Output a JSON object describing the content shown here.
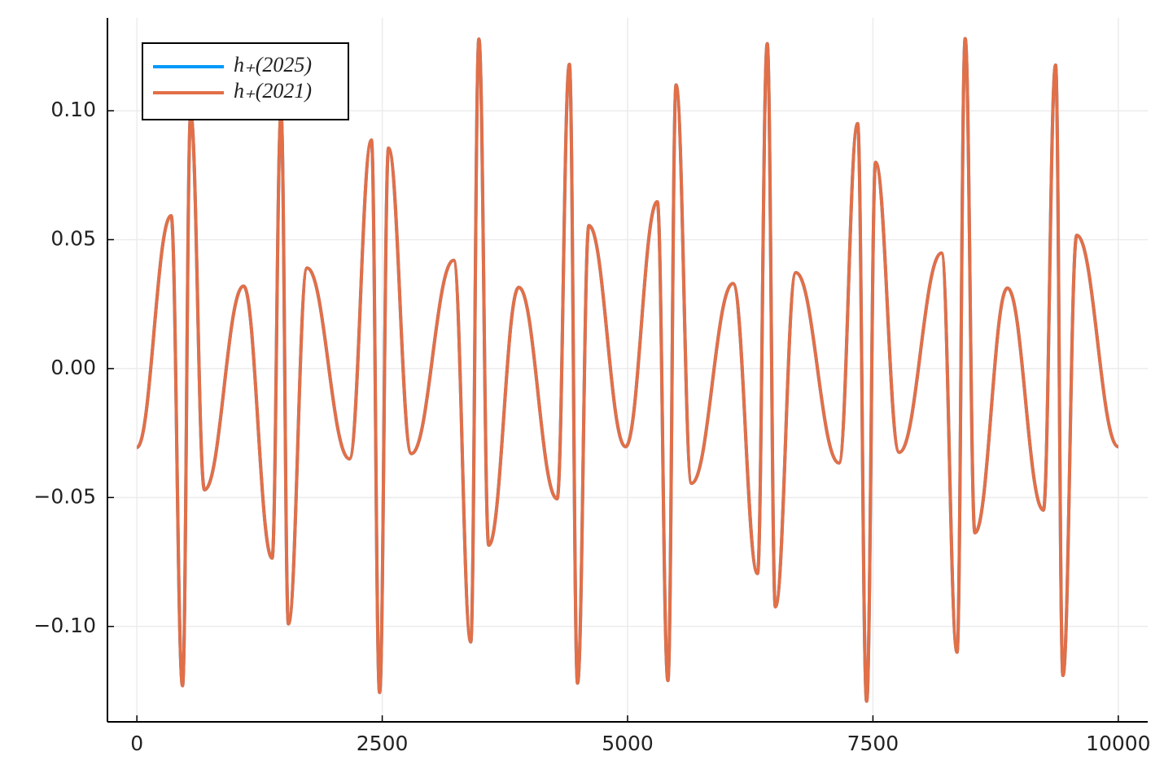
{
  "chart_data": {
    "type": "line",
    "x": [
      0,
      349,
      465,
      548,
      689,
      1087,
      1378,
      1469,
      1544,
      1734,
      2166,
      2390,
      2473,
      2564,
      2797,
      3228,
      3402,
      3485,
      3585,
      3892,
      4282,
      4407,
      4490,
      4606,
      4979,
      5303,
      5411,
      5494,
      5651,
      6075,
      6324,
      6423,
      6506,
      6714,
      7154,
      7344,
      7436,
      7527,
      7768,
      8199,
      8357,
      8440,
      8539,
      8871,
      9237,
      9361,
      9436,
      9577,
      10000
    ],
    "series": [
      {
        "name": "h₊(2025)",
        "color": "#009afa",
        "values": [
          -0.0306,
          0.0593,
          -0.123,
          0.099,
          -0.047,
          0.032,
          -0.0735,
          0.099,
          -0.099,
          0.039,
          -0.035,
          0.0886,
          -0.1256,
          0.0855,
          -0.033,
          0.042,
          -0.106,
          0.1278,
          -0.0685,
          0.0315,
          -0.0505,
          0.118,
          -0.122,
          0.0555,
          -0.0303,
          0.0647,
          -0.121,
          0.11,
          -0.0445,
          0.033,
          -0.0795,
          0.126,
          -0.0924,
          0.0372,
          -0.0366,
          0.095,
          -0.129,
          0.08,
          -0.0325,
          0.0448,
          -0.11,
          0.128,
          -0.0637,
          0.0312,
          -0.0549,
          0.1177,
          -0.119,
          0.0517,
          -0.0303
        ]
      },
      {
        "name": "h₊(2021)",
        "color": "#e36f47",
        "values": [
          -0.0306,
          0.0593,
          -0.123,
          0.099,
          -0.047,
          0.032,
          -0.0735,
          0.099,
          -0.099,
          0.039,
          -0.035,
          0.0886,
          -0.1256,
          0.0855,
          -0.033,
          0.042,
          -0.106,
          0.1278,
          -0.0685,
          0.0315,
          -0.0505,
          0.118,
          -0.122,
          0.0555,
          -0.0303,
          0.0647,
          -0.121,
          0.11,
          -0.0445,
          0.033,
          -0.0795,
          0.126,
          -0.0924,
          0.0372,
          -0.0366,
          0.095,
          -0.129,
          0.08,
          -0.0325,
          0.0448,
          -0.11,
          0.128,
          -0.0637,
          0.0312,
          -0.0549,
          0.1177,
          -0.119,
          0.0517,
          -0.0303
        ]
      }
    ],
    "xlim": [
      -300,
      10300
    ],
    "xticks": [
      0,
      2500,
      5000,
      7500,
      10000
    ],
    "ylim": [
      -0.137,
      0.136
    ],
    "yticks": [
      {
        "value": -0.1,
        "label": "−0.10"
      },
      {
        "value": -0.05,
        "label": "−0.05"
      },
      {
        "value": 0,
        "label": "0.00"
      },
      {
        "value": 0.05,
        "label": "0.05"
      },
      {
        "value": 0.1,
        "label": "0.10"
      }
    ],
    "grid": true,
    "legend": "top-left"
  }
}
